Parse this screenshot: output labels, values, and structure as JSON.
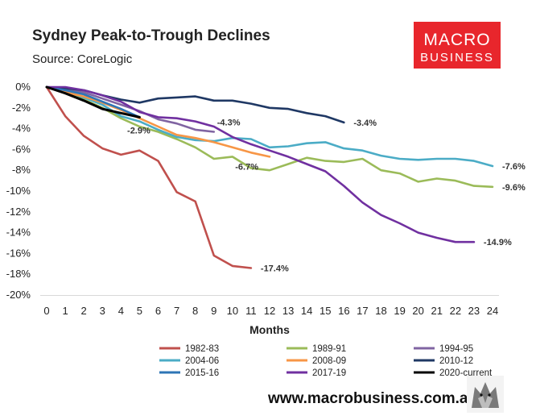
{
  "brand": {
    "logo_line1": "MACRO",
    "logo_line2": "BUSINESS",
    "logo_color": "#e8262c",
    "website": "www.macrobusiness.com.au",
    "mascot": "wolf-icon"
  },
  "chart_data": {
    "type": "line",
    "title": "Sydney Peak-to-Trough Declines",
    "subtitle": "Source: CoreLogic",
    "xlabel": "Months",
    "ylabel": "",
    "xlim": [
      0,
      24
    ],
    "ylim": [
      -20,
      0
    ],
    "x_ticks": [
      0,
      1,
      2,
      3,
      4,
      5,
      6,
      7,
      8,
      9,
      10,
      11,
      12,
      13,
      14,
      15,
      16,
      17,
      18,
      19,
      20,
      21,
      22,
      23,
      24
    ],
    "y_ticks": [
      0,
      -2,
      -4,
      -6,
      -8,
      -10,
      -12,
      -14,
      -16,
      -18,
      -20
    ],
    "y_tick_labels": [
      "0%",
      "-2%",
      "-4%",
      "-6%",
      "-8%",
      "-10%",
      "-12%",
      "-14%",
      "-16%",
      "-18%",
      "-20%"
    ],
    "grid": false,
    "legend_position": "bottom",
    "series": [
      {
        "name": "1982-83",
        "color": "#c0504d",
        "values": [
          0,
          -2.8,
          -4.7,
          -5.9,
          -6.5,
          -6.1,
          -7.1,
          -10.1,
          -11.0,
          -16.2,
          -17.2,
          -17.4
        ]
      },
      {
        "name": "1989-91",
        "color": "#9bbb59",
        "values": [
          0,
          -0.5,
          -1.2,
          -2.0,
          -3.0,
          -3.8,
          -4.3,
          -5.0,
          -5.8,
          -6.9,
          -6.7,
          -7.8,
          -8.0,
          -7.4,
          -6.8,
          -7.1,
          -7.2,
          -6.9,
          -8.0,
          -8.3,
          -9.1,
          -8.8,
          -9.0,
          -9.5,
          -9.6
        ]
      },
      {
        "name": "1994-95",
        "color": "#8064a2",
        "values": [
          0,
          -0.2,
          -0.5,
          -1.1,
          -1.7,
          -2.3,
          -3.1,
          -3.5,
          -4.1,
          -4.3
        ]
      },
      {
        "name": "2004-06",
        "color": "#4bacc6",
        "values": [
          0,
          -0.4,
          -1.0,
          -1.7,
          -2.8,
          -3.3,
          -4.1,
          -4.8,
          -5.1,
          -5.2,
          -4.9,
          -5.0,
          -5.8,
          -5.7,
          -5.4,
          -5.3,
          -5.9,
          -6.1,
          -6.6,
          -6.9,
          -7.0,
          -6.9,
          -6.9,
          -7.1,
          -7.6
        ]
      },
      {
        "name": "2008-09",
        "color": "#f79646",
        "values": [
          0,
          -0.5,
          -0.9,
          -1.5,
          -2.2,
          -3.0,
          -3.8,
          -4.6,
          -4.9,
          -5.3,
          -5.8,
          -6.3,
          -6.7
        ]
      },
      {
        "name": "2010-12",
        "color": "#1f3864",
        "values": [
          0,
          -0.1,
          -0.3,
          -0.8,
          -1.2,
          -1.5,
          -1.1,
          -1.0,
          -0.9,
          -1.3,
          -1.3,
          -1.6,
          -2.0,
          -2.1,
          -2.5,
          -2.8,
          -3.4
        ]
      },
      {
        "name": "2015-16",
        "color": "#2e75b6",
        "values": [
          0,
          -0.3,
          -0.7,
          -1.4,
          -2.1,
          -2.9
        ]
      },
      {
        "name": "2017-19",
        "color": "#7030a0",
        "values": [
          0,
          0,
          -0.3,
          -0.8,
          -1.4,
          -2.4,
          -2.9,
          -3.0,
          -3.3,
          -3.8,
          -4.8,
          -5.5,
          -6.1,
          -6.7,
          -7.4,
          -8.1,
          -9.5,
          -11.1,
          -12.3,
          -13.1,
          -14.0,
          -14.5,
          -14.9,
          -14.9
        ]
      },
      {
        "name": "2020-current",
        "color": "#000000",
        "values": [
          0,
          -0.6,
          -1.3,
          -2.1,
          -2.5,
          -2.9
        ]
      }
    ],
    "annotations": [
      {
        "text": "-17.4%",
        "series": "1982-83",
        "x": 11,
        "anchor": "right"
      },
      {
        "text": "-9.6%",
        "series": "1989-91",
        "x": 24,
        "anchor": "right"
      },
      {
        "text": "-4.3%",
        "series": "1994-95",
        "x": 9,
        "anchor": "above-right"
      },
      {
        "text": "-7.6%",
        "series": "2004-06",
        "x": 24,
        "anchor": "right"
      },
      {
        "text": "-6.7%",
        "series": "2008-09",
        "x": 12,
        "anchor": "below-left"
      },
      {
        "text": "-3.4%",
        "series": "2010-12",
        "x": 16,
        "anchor": "right"
      },
      {
        "text": "-14.9%",
        "series": "2017-19",
        "x": 23,
        "anchor": "right"
      },
      {
        "text": "-2.9%",
        "series": "2020-current",
        "x": 5,
        "anchor": "below"
      }
    ]
  }
}
